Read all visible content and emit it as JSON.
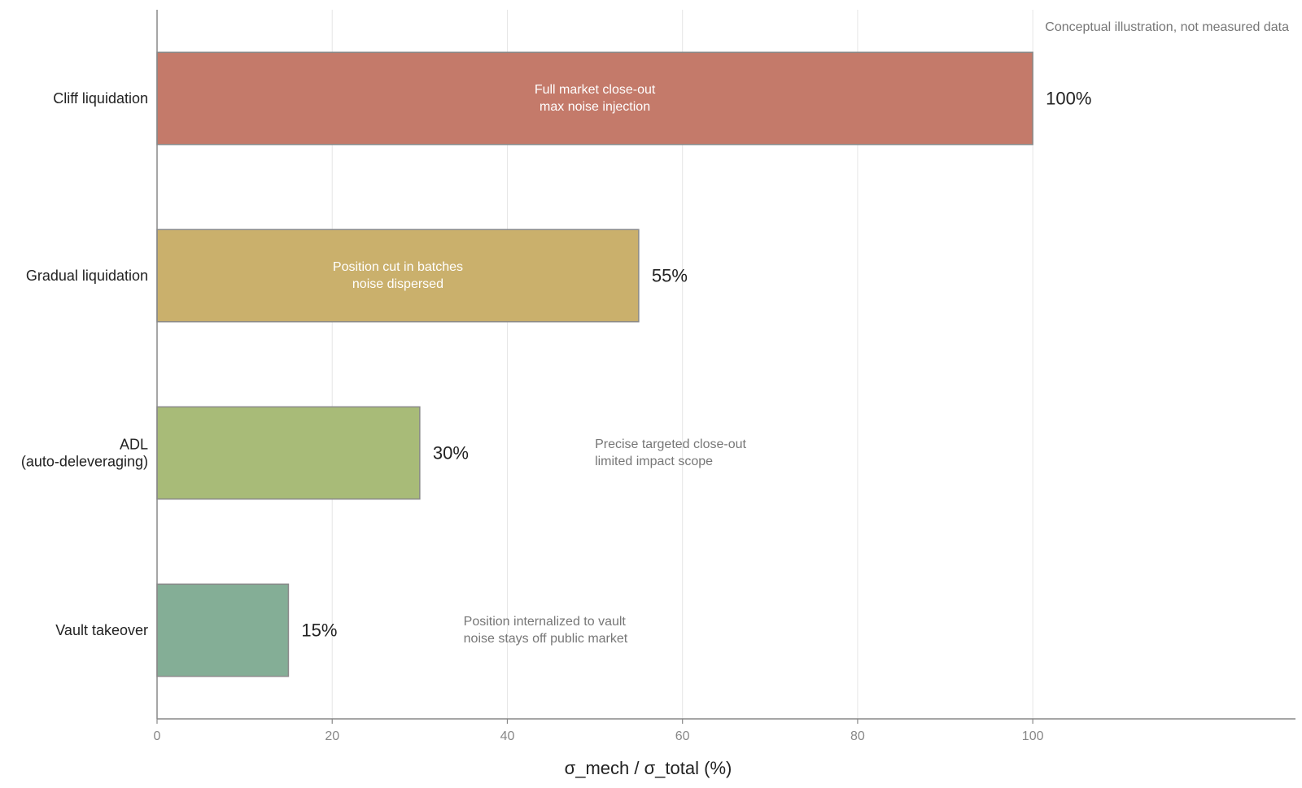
{
  "chart_data": {
    "type": "bar",
    "orientation": "horizontal",
    "categories": [
      {
        "label": [
          "Cliff liquidation"
        ],
        "value": 100,
        "value_label": "100%",
        "color": "#c47a6a",
        "annotation": [
          "Full market close-out",
          "max noise injection"
        ],
        "annotation_placement": "inside",
        "annotation_x": 50
      },
      {
        "label": [
          "Gradual liquidation"
        ],
        "value": 55,
        "value_label": "55%",
        "color": "#cab06c",
        "annotation": [
          "Position cut in batches",
          "noise dispersed"
        ],
        "annotation_placement": "inside",
        "annotation_x": 27.5
      },
      {
        "label": [
          "ADL",
          "(auto-deleveraging)"
        ],
        "value": 30,
        "value_label": "30%",
        "color": "#a8bb78",
        "annotation": [
          "Precise targeted close-out",
          "limited impact scope"
        ],
        "annotation_placement": "outside",
        "annotation_x": 50
      },
      {
        "label": [
          "Vault takeover"
        ],
        "value": 15,
        "value_label": "15%",
        "color": "#84ae96",
        "annotation": [
          "Position internalized to vault",
          "noise stays off public market"
        ],
        "annotation_placement": "outside",
        "annotation_x": 35
      }
    ],
    "xlabel": "σ_mech / σ_total (%)",
    "xticks": [
      0,
      20,
      40,
      60,
      80,
      100
    ],
    "xlim": [
      0,
      130
    ],
    "grid": "vertical",
    "note": "Conceptual illustration, not measured data",
    "colors": {
      "bar_stroke": "#8a8a8a",
      "axis": "#888888",
      "grid": "#e6e6e6"
    }
  }
}
